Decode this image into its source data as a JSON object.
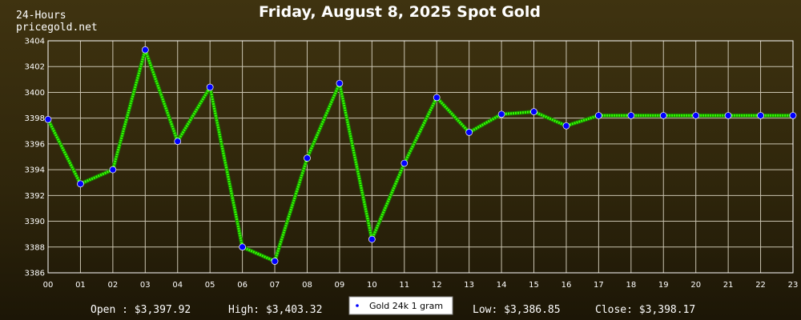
{
  "header": {
    "period": "24-Hours",
    "source": "pricegold.net",
    "title": "Friday, August 8, 2025 Spot Gold"
  },
  "stats": {
    "open": "Open : $3,397.92",
    "high": "High: $3,403.32",
    "low": "Low: $3,386.85",
    "close": "Close: $3,398.17"
  },
  "colors": {
    "line": "#33ff00",
    "marker": "#0000ff",
    "grid": "#c9c3b0",
    "plot_border": "#ffffff"
  },
  "chart_data": {
    "type": "line",
    "title": "Friday, August 8, 2025 Spot Gold",
    "xlabel": "",
    "ylabel": "",
    "x": [
      "00",
      "01",
      "02",
      "03",
      "04",
      "05",
      "06",
      "07",
      "08",
      "09",
      "10",
      "11",
      "12",
      "13",
      "14",
      "15",
      "16",
      "17",
      "18",
      "19",
      "20",
      "21",
      "22",
      "23"
    ],
    "ylim": [
      3386,
      3404
    ],
    "yticks": [
      3386,
      3388,
      3390,
      3392,
      3394,
      3396,
      3398,
      3400,
      3402,
      3404
    ],
    "grid": true,
    "legend_position": "bottom-center",
    "series": [
      {
        "name": "Gold 24k 1 gram",
        "values": [
          3397.9,
          3392.9,
          3394.0,
          3403.3,
          3396.2,
          3400.4,
          3388.0,
          3386.9,
          3394.9,
          3400.7,
          3388.6,
          3394.5,
          3399.6,
          3396.9,
          3398.3,
          3398.5,
          3397.4,
          3398.2,
          3398.2,
          3398.2,
          3398.2,
          3398.2,
          3398.2,
          3398.2
        ]
      }
    ]
  }
}
